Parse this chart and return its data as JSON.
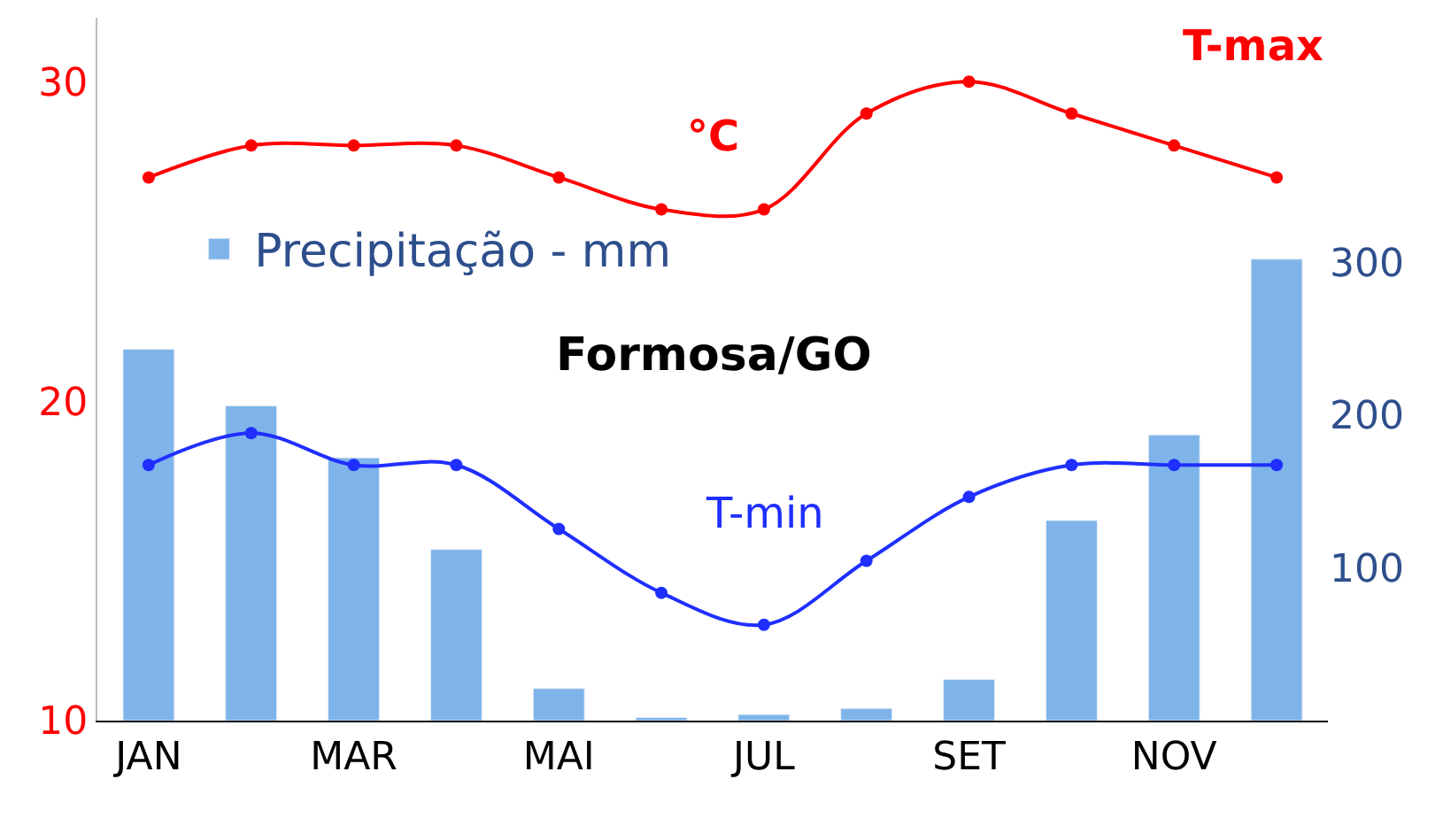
{
  "chart_data": {
    "type": "bar",
    "title": "Formosa/GO",
    "ylabel": "°C",
    "categories": [
      "JAN",
      null,
      "MAR",
      null,
      "MAI",
      null,
      "JUL",
      null,
      "SET",
      null,
      "NOV",
      null
    ],
    "series": [
      {
        "name": "Precipitação - mm",
        "axis": "y2",
        "color": "#7eb4ea",
        "values": [
          243,
          206,
          172,
          112,
          21,
          2,
          4,
          8,
          27,
          131,
          187,
          302
        ]
      },
      {
        "name": "T-max",
        "type": "line",
        "color": "#ff0000",
        "values": [
          27,
          28,
          28,
          28,
          27,
          26,
          26,
          29,
          30,
          29,
          28,
          27
        ]
      },
      {
        "name": "T-min",
        "type": "line",
        "color": "#1f2fff",
        "values": [
          18,
          19,
          18,
          18,
          16,
          14,
          13,
          15,
          17,
          18,
          18,
          18
        ]
      }
    ],
    "ylim": [
      10,
      32
    ],
    "yticks": [
      10,
      20,
      30
    ],
    "y2lim": [
      0,
      460
    ],
    "y2ticks": [
      100,
      200,
      300
    ],
    "legend": "top left",
    "marker": "circle",
    "line_style": "solid"
  }
}
